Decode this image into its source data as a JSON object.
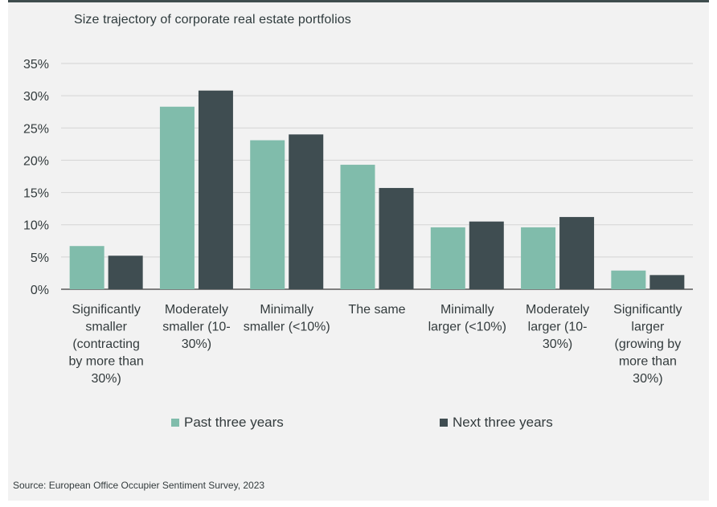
{
  "chart_data": {
    "type": "bar",
    "title": "Size trajectory of corporate real estate portfolios",
    "categories": [
      "Significantly smaller (contracting by more than 30%)",
      "Moderately smaller (10-30%)",
      "Minimally smaller (<10%)",
      "The same",
      "Minimally larger (<10%)",
      "Moderately larger (10-30%)",
      "Significantly larger (growing by more than 30%)"
    ],
    "category_label_lines": [
      [
        "Significantly",
        "smaller",
        "(contracting",
        "by more than",
        "30%)"
      ],
      [
        "Moderately",
        "smaller (10-",
        "30%)"
      ],
      [
        "Minimally",
        "smaller (<10%)"
      ],
      [
        "The same"
      ],
      [
        "Minimally",
        "larger (<10%)"
      ],
      [
        "Moderately",
        "larger (10-",
        "30%)"
      ],
      [
        "Significantly",
        "larger",
        "(growing by",
        "more than",
        "30%)"
      ]
    ],
    "series": [
      {
        "name": "Past three years",
        "color": "#80bcab",
        "values": [
          6.7,
          28.3,
          23.1,
          19.3,
          9.6,
          9.6,
          2.9
        ]
      },
      {
        "name": "Next three years",
        "color": "#3f4d51",
        "values": [
          5.2,
          30.8,
          24.0,
          15.7,
          10.5,
          11.2,
          2.2
        ]
      }
    ],
    "y_ticks": [
      "0%",
      "5%",
      "10%",
      "15%",
      "20%",
      "25%",
      "30%",
      "35%"
    ],
    "ylim": [
      0,
      35
    ],
    "grid": true,
    "legend": "bottom"
  },
  "source": "Source: European Office Occupier Sentiment Survey, 2023"
}
